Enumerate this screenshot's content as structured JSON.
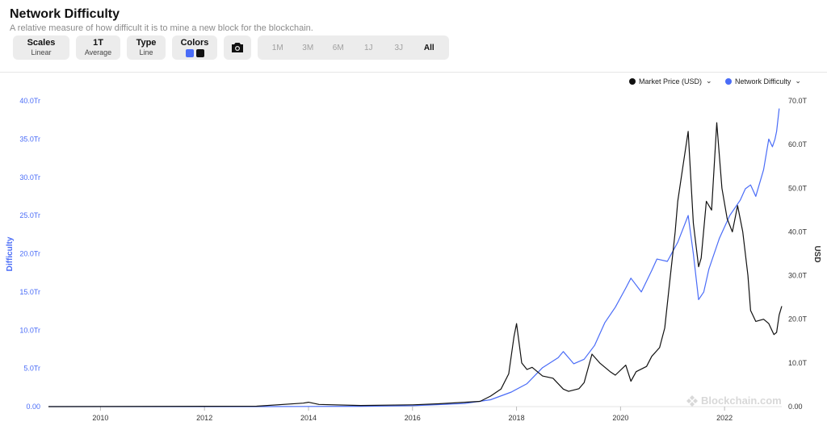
{
  "header": {
    "title": "Network Difficulty",
    "subtitle": "A relative measure of how difficult it is to mine a new block for the blockchain."
  },
  "toolbar": {
    "scales": {
      "label": "Scales",
      "value": "Linear"
    },
    "average": {
      "label": "1T",
      "value": "Average"
    },
    "type": {
      "label": "Type",
      "value": "Line"
    },
    "colors": {
      "label": "Colors",
      "swatches": [
        "#4a6cf7",
        "#111111"
      ]
    },
    "camera_icon": "camera-icon",
    "ranges": [
      "1M",
      "3M",
      "6M",
      "1J",
      "3J",
      "All"
    ],
    "active_range": "All"
  },
  "watermark": "Blockchain.com",
  "chart_data": {
    "type": "line",
    "legend": [
      "Market Price (USD)",
      "Network Difficulty"
    ],
    "legend_placement": "top-right",
    "x_ticks": [
      "2010",
      "2012",
      "2014",
      "2016",
      "2018",
      "2020",
      "2022"
    ],
    "xlim": [
      2009.0,
      2023.1
    ],
    "left_axis": {
      "label": "Difficulty",
      "ticks": [
        "0.00",
        "5.0Tr",
        "10.0Tr",
        "15.0Tr",
        "20.0Tr",
        "25.0Tr",
        "30.0Tr",
        "35.0Tr",
        "40.0Tr"
      ],
      "ylim": [
        0,
        40
      ],
      "color": "#4a6cf7"
    },
    "right_axis": {
      "label": "USD",
      "ticks": [
        "0.00",
        "10.0T",
        "20.0T",
        "30.0T",
        "40.0T",
        "50.0T",
        "60.0T",
        "70.0T"
      ],
      "ylim": [
        0,
        70
      ],
      "color": "#333333"
    },
    "series": [
      {
        "name": "Network Difficulty",
        "axis": "left",
        "color": "#4a6cf7",
        "points": [
          [
            2009.0,
            0
          ],
          [
            2013.0,
            0.001
          ],
          [
            2014.0,
            0.02
          ],
          [
            2015.0,
            0.04
          ],
          [
            2016.0,
            0.12
          ],
          [
            2017.0,
            0.4
          ],
          [
            2017.5,
            0.9
          ],
          [
            2017.9,
            1.9
          ],
          [
            2018.2,
            3.0
          ],
          [
            2018.5,
            5.1
          ],
          [
            2018.8,
            6.4
          ],
          [
            2018.9,
            7.2
          ],
          [
            2019.0,
            6.4
          ],
          [
            2019.1,
            5.6
          ],
          [
            2019.3,
            6.2
          ],
          [
            2019.5,
            8.0
          ],
          [
            2019.7,
            11.0
          ],
          [
            2019.9,
            13.0
          ],
          [
            2020.1,
            15.5
          ],
          [
            2020.2,
            16.8
          ],
          [
            2020.4,
            15.0
          ],
          [
            2020.6,
            17.8
          ],
          [
            2020.7,
            19.3
          ],
          [
            2020.9,
            19.0
          ],
          [
            2021.1,
            21.5
          ],
          [
            2021.3,
            25.0
          ],
          [
            2021.4,
            20.0
          ],
          [
            2021.5,
            14.0
          ],
          [
            2021.6,
            15.0
          ],
          [
            2021.7,
            18.0
          ],
          [
            2021.9,
            22.0
          ],
          [
            2022.1,
            25.0
          ],
          [
            2022.3,
            27.0
          ],
          [
            2022.4,
            28.5
          ],
          [
            2022.5,
            29.0
          ],
          [
            2022.6,
            27.5
          ],
          [
            2022.75,
            31.0
          ],
          [
            2022.85,
            35.0
          ],
          [
            2022.92,
            34.0
          ],
          [
            2022.97,
            35.0
          ],
          [
            2023.0,
            36.0
          ],
          [
            2023.05,
            39.0
          ]
        ]
      },
      {
        "name": "Market Price (USD)",
        "axis": "right",
        "color": "#111111",
        "points": [
          [
            2009.0,
            0
          ],
          [
            2013.0,
            0.1
          ],
          [
            2013.9,
            0.8
          ],
          [
            2014.0,
            1.0
          ],
          [
            2014.2,
            0.5
          ],
          [
            2015.0,
            0.25
          ],
          [
            2016.0,
            0.4
          ],
          [
            2016.5,
            0.65
          ],
          [
            2017.0,
            1.0
          ],
          [
            2017.3,
            1.2
          ],
          [
            2017.5,
            2.4
          ],
          [
            2017.7,
            4.0
          ],
          [
            2017.85,
            7.5
          ],
          [
            2017.95,
            16.0
          ],
          [
            2018.0,
            19.0
          ],
          [
            2018.1,
            10.0
          ],
          [
            2018.2,
            8.5
          ],
          [
            2018.3,
            9.0
          ],
          [
            2018.5,
            7.0
          ],
          [
            2018.7,
            6.5
          ],
          [
            2018.9,
            4.0
          ],
          [
            2019.0,
            3.5
          ],
          [
            2019.2,
            4.1
          ],
          [
            2019.3,
            5.5
          ],
          [
            2019.45,
            12.0
          ],
          [
            2019.6,
            10.0
          ],
          [
            2019.8,
            8.0
          ],
          [
            2019.9,
            7.2
          ],
          [
            2020.1,
            9.5
          ],
          [
            2020.2,
            5.8
          ],
          [
            2020.3,
            8.0
          ],
          [
            2020.5,
            9.2
          ],
          [
            2020.6,
            11.5
          ],
          [
            2020.75,
            13.5
          ],
          [
            2020.85,
            18.0
          ],
          [
            2020.95,
            29.0
          ],
          [
            2021.05,
            40.0
          ],
          [
            2021.1,
            47.0
          ],
          [
            2021.2,
            55.0
          ],
          [
            2021.3,
            63.0
          ],
          [
            2021.4,
            42.0
          ],
          [
            2021.5,
            32.0
          ],
          [
            2021.55,
            34.0
          ],
          [
            2021.65,
            47.0
          ],
          [
            2021.75,
            45.0
          ],
          [
            2021.85,
            65.0
          ],
          [
            2021.95,
            50.0
          ],
          [
            2022.05,
            43.0
          ],
          [
            2022.15,
            40.0
          ],
          [
            2022.25,
            46.0
          ],
          [
            2022.35,
            40.0
          ],
          [
            2022.45,
            30.0
          ],
          [
            2022.5,
            22.0
          ],
          [
            2022.6,
            19.5
          ],
          [
            2022.75,
            20.0
          ],
          [
            2022.85,
            19.0
          ],
          [
            2022.95,
            16.5
          ],
          [
            2023.0,
            17.0
          ],
          [
            2023.05,
            21.0
          ],
          [
            2023.1,
            23.0
          ]
        ]
      }
    ]
  }
}
